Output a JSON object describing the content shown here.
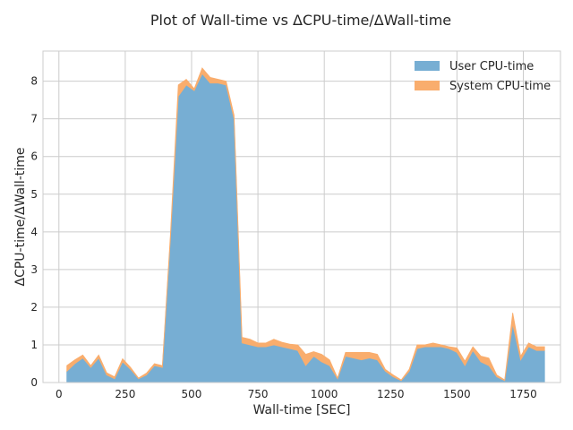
{
  "chart_data": {
    "type": "area",
    "stacked": true,
    "title": "Plot of Wall-time vs ΔCPU-time/ΔWall-time",
    "xlabel": "Wall-time [SEC]",
    "ylabel": "ΔCPU-time/ΔWall-time",
    "xlim": [
      -60,
      1890
    ],
    "ylim": [
      0,
      8.8
    ],
    "xticks": [
      0,
      250,
      500,
      750,
      1000,
      1250,
      1500,
      1750
    ],
    "yticks": [
      0,
      1,
      2,
      3,
      4,
      5,
      6,
      7,
      8
    ],
    "grid": true,
    "legend_position": "top-right",
    "x": [
      30,
      60,
      90,
      120,
      150,
      180,
      210,
      240,
      270,
      300,
      330,
      360,
      390,
      420,
      450,
      480,
      510,
      540,
      570,
      600,
      630,
      660,
      690,
      720,
      750,
      780,
      810,
      840,
      870,
      900,
      930,
      960,
      990,
      1020,
      1050,
      1080,
      1110,
      1140,
      1170,
      1200,
      1230,
      1260,
      1290,
      1320,
      1350,
      1380,
      1410,
      1440,
      1470,
      1500,
      1530,
      1560,
      1590,
      1620,
      1650,
      1680,
      1710,
      1740,
      1770,
      1800,
      1830
    ],
    "series": [
      {
        "name": "User CPU-time",
        "color": "#77aed3",
        "values": [
          0.3,
          0.5,
          0.65,
          0.4,
          0.65,
          0.2,
          0.1,
          0.55,
          0.35,
          0.1,
          0.2,
          0.45,
          0.4,
          3.8,
          7.6,
          7.9,
          7.75,
          8.2,
          7.95,
          7.95,
          7.9,
          7.0,
          1.05,
          1.0,
          0.95,
          0.95,
          1.0,
          0.95,
          0.9,
          0.85,
          0.45,
          0.7,
          0.55,
          0.45,
          0.1,
          0.7,
          0.65,
          0.6,
          0.65,
          0.6,
          0.3,
          0.15,
          0.05,
          0.3,
          0.9,
          0.95,
          0.95,
          0.95,
          0.9,
          0.8,
          0.45,
          0.85,
          0.55,
          0.45,
          0.15,
          0.05,
          1.55,
          0.6,
          0.95,
          0.85,
          0.85
        ]
      },
      {
        "name": "System CPU-time",
        "color": "#f9ad6d",
        "values": [
          0.15,
          0.1,
          0.08,
          0.05,
          0.08,
          0.06,
          0.05,
          0.08,
          0.05,
          0.02,
          0.05,
          0.05,
          0.05,
          0.1,
          0.3,
          0.15,
          0.05,
          0.15,
          0.15,
          0.1,
          0.1,
          0.1,
          0.15,
          0.15,
          0.1,
          0.1,
          0.15,
          0.12,
          0.12,
          0.15,
          0.3,
          0.12,
          0.2,
          0.15,
          0.02,
          0.1,
          0.15,
          0.2,
          0.15,
          0.15,
          0.05,
          0.05,
          0.02,
          0.05,
          0.1,
          0.05,
          0.1,
          0.05,
          0.05,
          0.12,
          0.12,
          0.1,
          0.15,
          0.2,
          0.05,
          0.02,
          0.3,
          0.1,
          0.1,
          0.1,
          0.1
        ]
      }
    ]
  }
}
